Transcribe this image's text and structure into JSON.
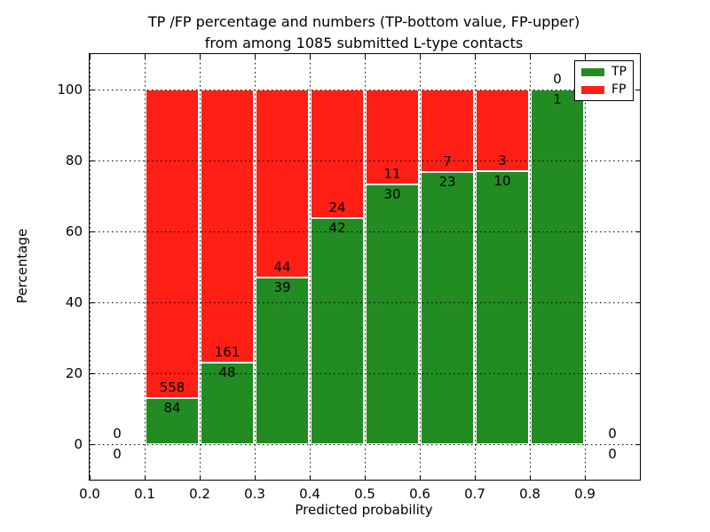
{
  "chart_data": {
    "type": "bar",
    "stacked": true,
    "title_lines": [
      "TP /FP percentage and numbers (TP-bottom value, FP-upper)",
      "from among 1085 submitted L-type contacts"
    ],
    "xlabel": "Predicted probability",
    "ylabel": "Percentage",
    "xlim": [
      0.0,
      1.0
    ],
    "ylim": [
      -10,
      110
    ],
    "xticks": [
      "0.0",
      "0.1",
      "0.2",
      "0.3",
      "0.4",
      "0.5",
      "0.6",
      "0.7",
      "0.8",
      "0.9"
    ],
    "yticks": [
      "0",
      "20",
      "40",
      "60",
      "80",
      "100"
    ],
    "grid": true,
    "grid_style": "dotted",
    "legend_position": "upper right",
    "series": [
      {
        "name": "TP",
        "color": "#228B22"
      },
      {
        "name": "FP",
        "color": "#FF1F14"
      }
    ],
    "bins": [
      {
        "range": [
          0.0,
          0.1
        ],
        "tp": 0,
        "fp": 0,
        "tp_pct": 0
      },
      {
        "range": [
          0.1,
          0.2
        ],
        "tp": 84,
        "fp": 558,
        "tp_pct": 13.08
      },
      {
        "range": [
          0.2,
          0.3
        ],
        "tp": 48,
        "fp": 161,
        "tp_pct": 22.97
      },
      {
        "range": [
          0.3,
          0.4
        ],
        "tp": 39,
        "fp": 44,
        "tp_pct": 46.99
      },
      {
        "range": [
          0.4,
          0.5
        ],
        "tp": 42,
        "fp": 24,
        "tp_pct": 63.64
      },
      {
        "range": [
          0.5,
          0.6
        ],
        "tp": 30,
        "fp": 11,
        "tp_pct": 73.17
      },
      {
        "range": [
          0.6,
          0.7
        ],
        "tp": 23,
        "fp": 7,
        "tp_pct": 76.67
      },
      {
        "range": [
          0.7,
          0.8
        ],
        "tp": 10,
        "fp": 3,
        "tp_pct": 76.92
      },
      {
        "range": [
          0.8,
          0.9
        ],
        "tp": 1,
        "fp": 0,
        "tp_pct": 100
      },
      {
        "range": [
          0.9,
          1.0
        ],
        "tp": 0,
        "fp": 0,
        "tp_pct": 0
      }
    ],
    "total_submitted": 1085
  }
}
